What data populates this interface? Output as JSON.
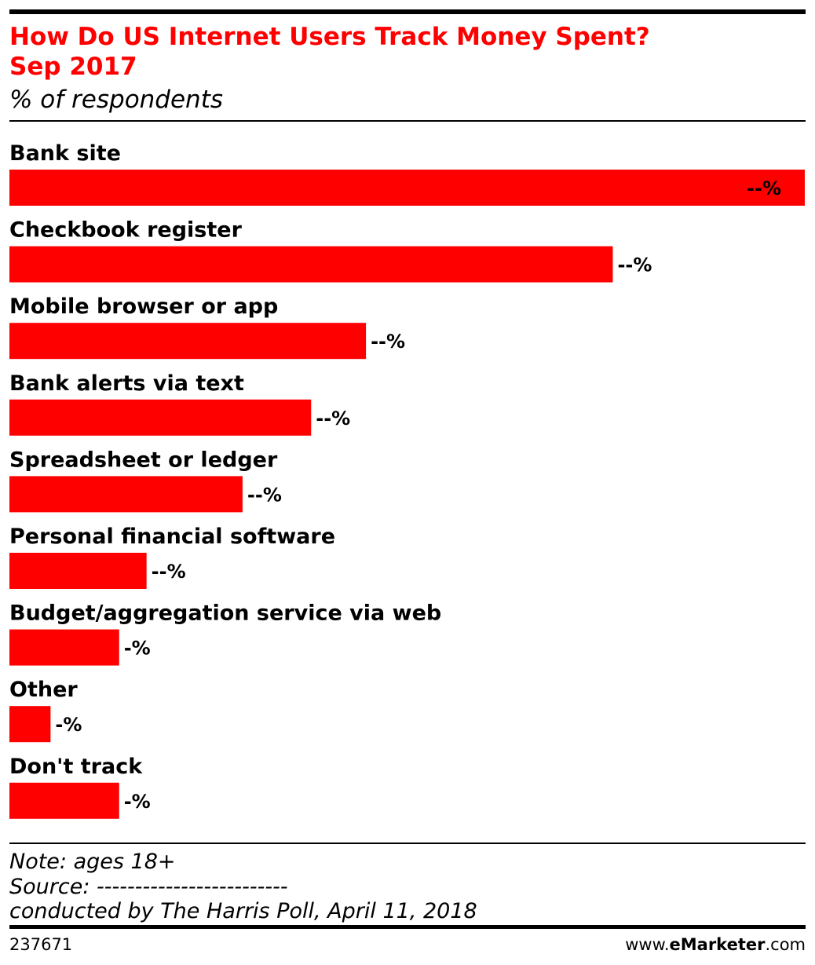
{
  "chart_data": {
    "type": "bar",
    "orientation": "horizontal",
    "title_lines": [
      "How Do US Internet Users Track Money Spent?",
      "Sep 2017"
    ],
    "subtitle": "% of respondents",
    "categories": [
      "Bank site",
      "Checkbook register",
      "Mobile browser or app",
      "Bank alerts via text",
      "Spreadsheet or ledger",
      "Personal financial software",
      "Budget/aggregation service via web",
      "Other",
      "Don't track"
    ],
    "values": [
      58,
      44,
      26,
      22,
      17,
      10,
      8,
      3,
      8
    ],
    "value_labels": [
      "--%",
      "--%",
      "--%",
      "--%",
      "--%",
      "--%",
      "-%",
      "-%",
      "-%"
    ],
    "color": "#ff0000",
    "xlim": [
      0,
      58
    ],
    "notes": [
      "Note: ages 18+",
      "Source: -------------------------",
      "conducted by The Harris Poll, April 11, 2018"
    ],
    "chart_id": "237671",
    "logo": [
      "www.",
      "eMarketer",
      ".com"
    ]
  }
}
